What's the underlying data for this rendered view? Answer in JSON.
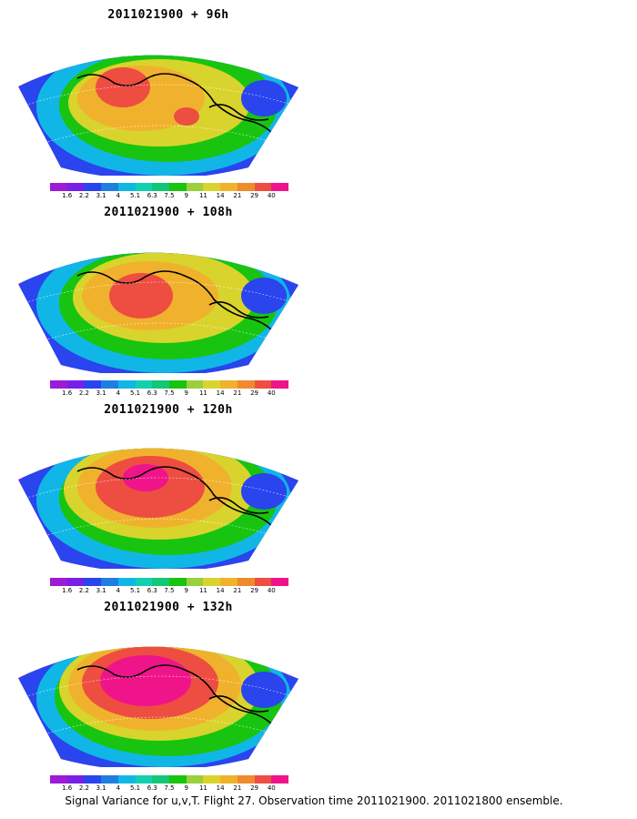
{
  "panels": [
    {
      "title": "2011021900  +  96h"
    },
    {
      "title": "2011021900  +  108h"
    },
    {
      "title": "2011021900  +  120h"
    },
    {
      "title": "2011021900  +  132h"
    }
  ],
  "colorbar": {
    "labels": [
      "1.6",
      "2.2",
      "3.1",
      "4",
      "5.1",
      "6.3",
      "7.5",
      "9",
      "11",
      "14",
      "21",
      "29",
      "40"
    ],
    "colors": [
      "#9b1bd6",
      "#7a1fe6",
      "#2a44ee",
      "#1e7fe0",
      "#10b7e6",
      "#12cfb0",
      "#14c678",
      "#18c40f",
      "#9ad03c",
      "#d9d42d",
      "#f0b22c",
      "#ef8a2d",
      "#ee4d42",
      "#f0148a"
    ]
  },
  "caption": "Signal Variance for u,v,T. Flight 27. Observation time 2011021900. 2011021800 ensemble."
}
